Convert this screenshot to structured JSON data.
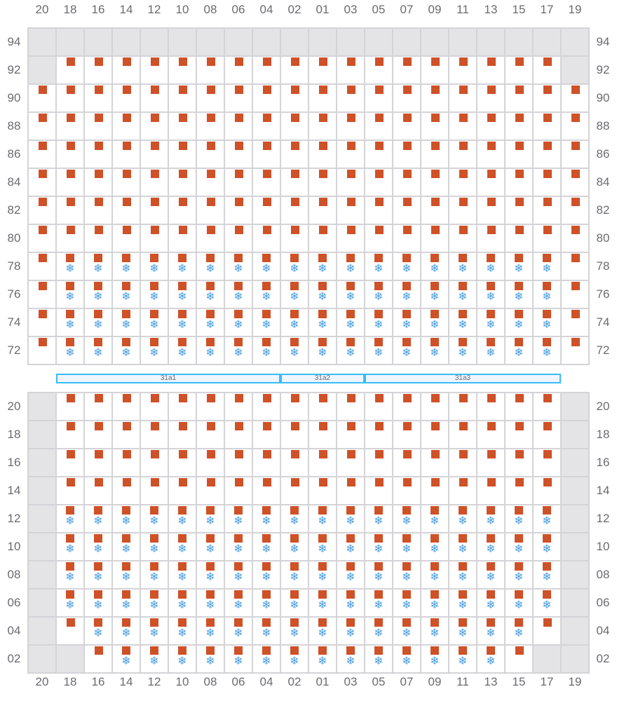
{
  "columns": [
    "20",
    "18",
    "16",
    "14",
    "12",
    "10",
    "08",
    "06",
    "04",
    "02",
    "01",
    "03",
    "05",
    "07",
    "09",
    "11",
    "13",
    "15",
    "17",
    "19"
  ],
  "colors": {
    "item": "#cf5128",
    "frozen": "#4a9de0",
    "disabled": "#e4e4e7",
    "grid": "#d4d4d8",
    "bar": "#38bdf8"
  },
  "icons": {
    "item": "square",
    "frozen": "snowflake-icon"
  },
  "top_section": {
    "rows": [
      {
        "label": "94",
        "cells": "--------------------"
      },
      {
        "label": "92",
        "cells": "-ssssssssssssssssss-"
      },
      {
        "label": "90",
        "cells": "ssssssssssssssssssss"
      },
      {
        "label": "88",
        "cells": "ssssssssssssssssssss"
      },
      {
        "label": "86",
        "cells": "ssssssssssssssssssss"
      },
      {
        "label": "84",
        "cells": "ssssssssssssssssssss"
      },
      {
        "label": "82",
        "cells": "ssssssssssssssssssss"
      },
      {
        "label": "80",
        "cells": "ssssssssssssssssssss"
      },
      {
        "label": "78",
        "cells": "sffffffffffffffffffs"
      },
      {
        "label": "76",
        "cells": "sffffffffffffffffffs"
      },
      {
        "label": "74",
        "cells": "sffffffffffffffffffs"
      },
      {
        "label": "72",
        "cells": "sffffffffffffffffffs"
      }
    ]
  },
  "segments": [
    {
      "label": "31a1",
      "from": "18",
      "to": "04"
    },
    {
      "label": "31a2",
      "from": "02",
      "to": "03"
    },
    {
      "label": "31a3",
      "from": "05",
      "to": "17"
    }
  ],
  "bottom_section": {
    "rows": [
      {
        "label": "20",
        "cells": "-ssssssssssssssssss-"
      },
      {
        "label": "18",
        "cells": "-ssssssssssssssssss-"
      },
      {
        "label": "16",
        "cells": "-ssssssssssssssssss-"
      },
      {
        "label": "14",
        "cells": "-ssssssssssssssssss-"
      },
      {
        "label": "12",
        "cells": "-ffffffffffffffffff-"
      },
      {
        "label": "10",
        "cells": "-ffffffffffffffffff-"
      },
      {
        "label": "08",
        "cells": "-ffffffffffffffffff-"
      },
      {
        "label": "06",
        "cells": "-ffffffffffffffffff-"
      },
      {
        "label": "04",
        "cells": "-sffffffffffffffffs-"
      },
      {
        "label": "02",
        "cells": "--sffffffffffffffs--"
      }
    ]
  }
}
